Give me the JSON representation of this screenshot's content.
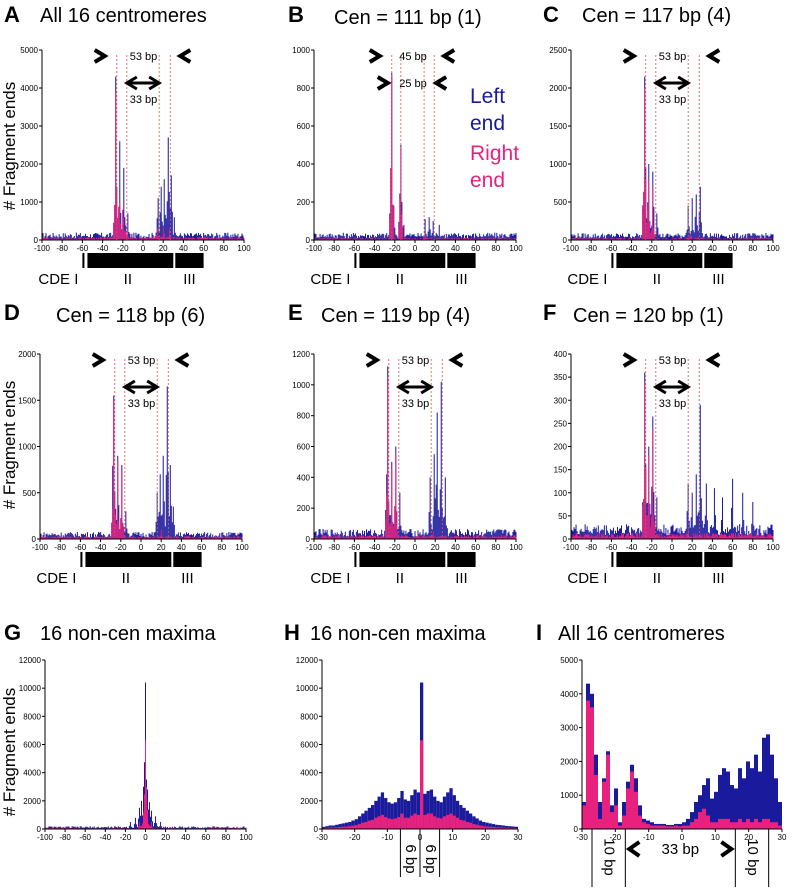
{
  "colors": {
    "left": "#1a1a9c",
    "right": "#e8217f",
    "guide": "#e05050"
  },
  "y_axis_label": "# Fragment ends",
  "legend": {
    "left": [
      "Left",
      "end"
    ],
    "right": [
      "Right",
      "end"
    ]
  },
  "cde_labels": {
    "prefix": "CDE I",
    "ii": "II",
    "iii": "III"
  },
  "chart_data": [
    {
      "id": "A",
      "title": "All 16 centromeres",
      "type": "bar",
      "stacked": true,
      "xlim": [
        -100,
        100
      ],
      "xticks": [
        -100,
        -80,
        -60,
        -40,
        -20,
        0,
        20,
        40,
        60,
        80,
        100
      ],
      "ylim": [
        0,
        5000
      ],
      "yticks": [
        0,
        1000,
        2000,
        3000,
        4000,
        5000
      ],
      "annotations": {
        "outer": "53 bp",
        "inner": "33 bp"
      },
      "guides": [
        -26,
        -16,
        16,
        27
      ],
      "peaks": {
        "left": [
          [
            -27,
            4300
          ],
          [
            -23,
            2600
          ],
          [
            -19,
            1900
          ],
          [
            -15,
            700
          ],
          [
            15,
            1100
          ],
          [
            18,
            1400
          ],
          [
            21,
            1600
          ],
          [
            25,
            2700
          ],
          [
            28,
            1700
          ],
          [
            31,
            600
          ]
        ],
        "right": [
          [
            -27,
            3900
          ],
          [
            -24,
            2000
          ],
          [
            -20,
            1700
          ],
          [
            -16,
            600
          ],
          [
            14,
            300
          ],
          [
            20,
            350
          ],
          [
            26,
            300
          ]
        ]
      },
      "noise": {
        "left": 150,
        "right": 60
      },
      "cde": "large"
    },
    {
      "id": "B",
      "title": "Cen = 111 bp (1)",
      "type": "bar",
      "stacked": true,
      "xlim": [
        -100,
        100
      ],
      "xticks": [
        -100,
        -80,
        -60,
        -40,
        -20,
        0,
        20,
        40,
        60,
        80,
        100
      ],
      "ylim": [
        0,
        1000
      ],
      "yticks": [
        0,
        200,
        400,
        600,
        800,
        1000
      ],
      "annotations": {
        "outer": "45 bp",
        "inner": "25 bp"
      },
      "guides": [
        -23,
        -14,
        9,
        19
      ],
      "peaks": {
        "left": [
          [
            -23,
            880
          ],
          [
            -21,
            150
          ],
          [
            -14,
            500
          ],
          [
            -11,
            80
          ],
          [
            10,
            110
          ],
          [
            14,
            120
          ],
          [
            18,
            100
          ],
          [
            24,
            80
          ]
        ],
        "right": [
          [
            -23,
            860
          ],
          [
            -14,
            480
          ],
          [
            10,
            30
          ]
        ]
      },
      "noise": {
        "left": 30,
        "right": 10
      },
      "cde": "small"
    },
    {
      "id": "C",
      "title": "Cen = 117 bp (4)",
      "type": "bar",
      "stacked": true,
      "xlim": [
        -100,
        100
      ],
      "xticks": [
        -100,
        -80,
        -60,
        -40,
        -20,
        0,
        20,
        40,
        60,
        80,
        100
      ],
      "ylim": [
        0,
        2500
      ],
      "yticks": [
        0,
        500,
        1000,
        1500,
        2000,
        2500
      ],
      "annotations": {
        "outer": "53 bp",
        "inner": "33 bp"
      },
      "guides": [
        -26,
        -16,
        16,
        27
      ],
      "peaks": {
        "left": [
          [
            -27,
            2150
          ],
          [
            -23,
            1000
          ],
          [
            -19,
            900
          ],
          [
            -15,
            350
          ],
          [
            16,
            450
          ],
          [
            20,
            550
          ],
          [
            24,
            600
          ],
          [
            28,
            700
          ]
        ],
        "right": [
          [
            -27,
            2000
          ],
          [
            -23,
            800
          ],
          [
            -19,
            700
          ],
          [
            18,
            100
          ]
        ]
      },
      "noise": {
        "left": 70,
        "right": 25
      },
      "cde": "large"
    },
    {
      "id": "D",
      "title": "Cen = 118 bp (6)",
      "type": "bar",
      "stacked": true,
      "xlim": [
        -100,
        100
      ],
      "xticks": [
        -100,
        -80,
        -60,
        -40,
        -20,
        0,
        20,
        40,
        60,
        80,
        100
      ],
      "ylim": [
        0,
        2000
      ],
      "yticks": [
        0,
        500,
        1000,
        1500,
        2000
      ],
      "annotations": {
        "outer": "53 bp",
        "inner": "33 bp"
      },
      "guides": [
        -26,
        -16,
        16,
        27
      ],
      "peaks": {
        "left": [
          [
            -27,
            1550
          ],
          [
            -23,
            900
          ],
          [
            -19,
            800
          ],
          [
            -15,
            300
          ],
          [
            16,
            500
          ],
          [
            19,
            700
          ],
          [
            22,
            900
          ],
          [
            26,
            1650
          ],
          [
            29,
            800
          ],
          [
            32,
            350
          ]
        ],
        "right": [
          [
            -27,
            1500
          ],
          [
            -23,
            850
          ],
          [
            -19,
            750
          ],
          [
            20,
            100
          ]
        ]
      },
      "noise": {
        "left": 60,
        "right": 25
      },
      "cde": "large"
    },
    {
      "id": "E",
      "title": "Cen = 119 bp (4)",
      "type": "bar",
      "stacked": true,
      "xlim": [
        -100,
        100
      ],
      "xticks": [
        -100,
        -80,
        -60,
        -40,
        -20,
        0,
        20,
        40,
        60,
        80,
        100
      ],
      "ylim": [
        0,
        1200
      ],
      "yticks": [
        0,
        200,
        400,
        600,
        800,
        1000,
        1200
      ],
      "annotations": {
        "outer": "53 bp",
        "inner": "33 bp"
      },
      "guides": [
        -26,
        -16,
        16,
        27
      ],
      "peaks": {
        "left": [
          [
            -27,
            1120
          ],
          [
            -23,
            500
          ],
          [
            -19,
            600
          ],
          [
            -15,
            300
          ],
          [
            15,
            400
          ],
          [
            19,
            550
          ],
          [
            22,
            820
          ],
          [
            26,
            1020
          ],
          [
            30,
            400
          ]
        ],
        "right": [
          [
            -27,
            1050
          ],
          [
            -23,
            450
          ],
          [
            -19,
            550
          ],
          [
            18,
            50
          ]
        ]
      },
      "noise": {
        "left": 50,
        "right": 20
      },
      "cde": "small"
    },
    {
      "id": "F",
      "title": "Cen = 120 bp (1)",
      "type": "bar",
      "stacked": true,
      "xlim": [
        -100,
        100
      ],
      "xticks": [
        -100,
        -80,
        -60,
        -40,
        -20,
        0,
        20,
        40,
        60,
        80,
        100
      ],
      "ylim": [
        0,
        400
      ],
      "yticks": [
        0,
        50,
        100,
        150,
        200,
        250,
        300,
        350,
        400
      ],
      "annotations": {
        "outer": "53 bp",
        "inner": "33 bp"
      },
      "guides": [
        -26,
        -16,
        16,
        27
      ],
      "peaks": {
        "left": [
          [
            -27,
            360
          ],
          [
            -23,
            200
          ],
          [
            -19,
            265
          ],
          [
            -15,
            90
          ],
          [
            16,
            120
          ],
          [
            20,
            100
          ],
          [
            24,
            140
          ],
          [
            28,
            290
          ],
          [
            34,
            120
          ],
          [
            42,
            110
          ],
          [
            50,
            90
          ],
          [
            60,
            130
          ],
          [
            70,
            100
          ],
          [
            80,
            80
          ]
        ],
        "right": [
          [
            -27,
            340
          ],
          [
            -23,
            180
          ],
          [
            -19,
            240
          ],
          [
            16,
            20
          ]
        ]
      },
      "noise": {
        "left": 25,
        "right": 10
      },
      "cde": "small"
    },
    {
      "id": "G",
      "title": "16 non-cen maxima",
      "type": "bar",
      "stacked": true,
      "xlim": [
        -100,
        100
      ],
      "xticks": [
        -100,
        -80,
        -60,
        -40,
        -20,
        0,
        20,
        40,
        60,
        80,
        100
      ],
      "ylim": [
        0,
        12000
      ],
      "yticks": [
        0,
        2000,
        4000,
        6000,
        8000,
        10000,
        12000
      ],
      "peaks": {
        "left": [
          [
            0,
            10400
          ],
          [
            -4,
            2000
          ],
          [
            -6,
            1500
          ],
          [
            4,
            1900
          ],
          [
            6,
            1300
          ],
          [
            -2,
            3000
          ],
          [
            2,
            2800
          ],
          [
            -10,
            800
          ],
          [
            10,
            900
          ],
          [
            -15,
            500
          ],
          [
            15,
            500
          ]
        ],
        "right": [
          [
            0,
            6300
          ],
          [
            -2,
            1200
          ],
          [
            2,
            1100
          ],
          [
            -6,
            500
          ],
          [
            6,
            500
          ]
        ]
      },
      "noise": {
        "left": 150,
        "right": 60
      }
    },
    {
      "id": "H",
      "title": "16 non-cen maxima",
      "type": "bar",
      "stacked": true,
      "xlim": [
        -30,
        30
      ],
      "xticks": [
        -30,
        -20,
        -10,
        0,
        10,
        20,
        30
      ],
      "ylim": [
        0,
        12000
      ],
      "yticks": [
        0,
        2000,
        4000,
        6000,
        8000,
        10000,
        12000
      ],
      "bottom_labels": [
        "6 bp",
        "6 bp"
      ],
      "values_left": [
        150,
        200,
        250,
        250,
        300,
        350,
        400,
        450,
        500,
        600,
        700,
        900,
        1100,
        1300,
        1500,
        1700,
        2000,
        2300,
        2600,
        2200,
        1900,
        1800,
        1900,
        2200,
        2700,
        2100,
        2000,
        2400,
        2800,
        2600,
        10400,
        2500,
        2700,
        2800,
        2300,
        2000,
        1900,
        2300,
        2600,
        2900,
        2400,
        2000,
        1700,
        1500,
        1300,
        1100,
        900,
        750,
        600,
        500,
        450,
        400,
        350,
        300,
        280,
        250,
        220,
        200,
        180,
        160
      ],
      "values_right": [
        60,
        80,
        100,
        100,
        120,
        140,
        160,
        180,
        200,
        240,
        280,
        350,
        450,
        500,
        600,
        650,
        800,
        900,
        1000,
        850,
        750,
        700,
        750,
        850,
        1100,
        800,
        800,
        950,
        1100,
        1000,
        6300,
        1000,
        1100,
        1100,
        900,
        800,
        750,
        900,
        1000,
        1100,
        950,
        800,
        650,
        600,
        500,
        450,
        350,
        300,
        250,
        200,
        180,
        160,
        140,
        120,
        110,
        100,
        90,
        80,
        70,
        60
      ]
    },
    {
      "id": "I",
      "title": "All 16 centromeres",
      "type": "bar",
      "stacked": true,
      "xlim": [
        -30,
        30
      ],
      "xticks": [
        -30,
        -20,
        -10,
        0,
        10,
        20,
        30
      ],
      "ylim": [
        0,
        5000
      ],
      "yticks": [
        0,
        1000,
        2000,
        3000,
        4000,
        5000
      ],
      "bottom_labels": [
        "10 bp",
        "33 bp",
        "10 bp"
      ],
      "values_left": [
        800,
        4300,
        4000,
        2200,
        800,
        1500,
        2300,
        700,
        1200,
        200,
        800,
        1400,
        1900,
        1500,
        700,
        300,
        250,
        200,
        150,
        150,
        150,
        120,
        120,
        150,
        150,
        200,
        300,
        500,
        800,
        1000,
        1300,
        1500,
        900,
        1100,
        1600,
        1800,
        1700,
        1300,
        1200,
        1800,
        1500,
        2000,
        1800,
        2200,
        1700,
        2700,
        2800,
        2200,
        1500,
        800
      ],
      "values_right": [
        700,
        3800,
        3600,
        1600,
        300,
        1400,
        2200,
        500,
        700,
        100,
        400,
        1200,
        1700,
        1100,
        400,
        200,
        150,
        100,
        100,
        100,
        100,
        80,
        80,
        100,
        80,
        100,
        100,
        200,
        300,
        500,
        600,
        400,
        200,
        200,
        300,
        300,
        300,
        200,
        200,
        300,
        200,
        300,
        200,
        300,
        200,
        300,
        300,
        200,
        200,
        100
      ]
    }
  ]
}
